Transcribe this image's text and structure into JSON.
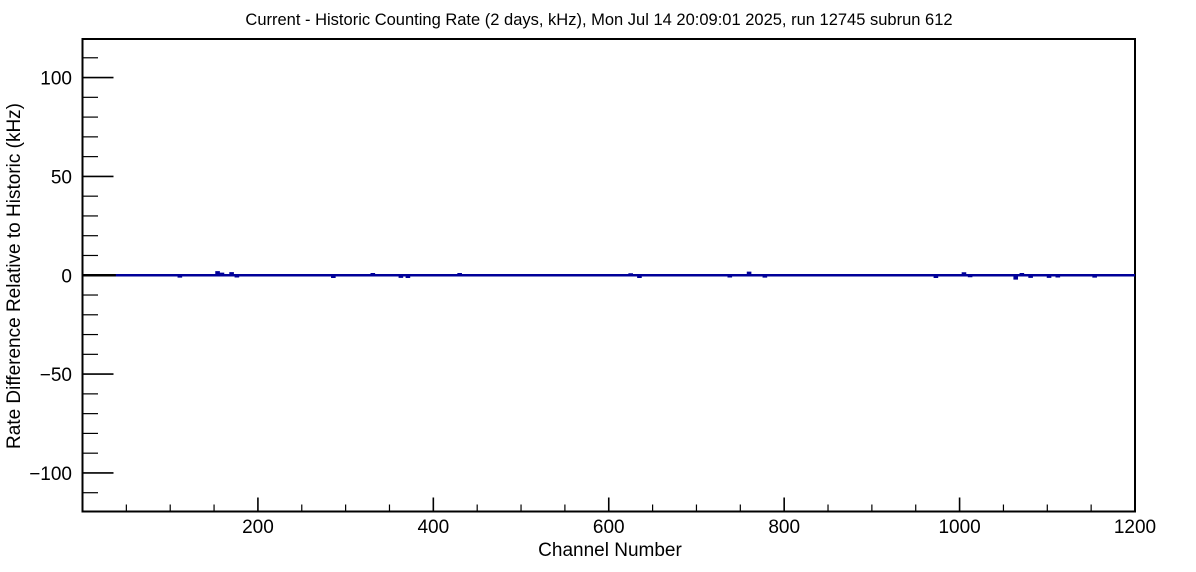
{
  "window": {
    "background": "#ffffff"
  },
  "chart_data": {
    "type": "line",
    "subtype": "root-histogram-rate-difference",
    "title": "Current - Historic Counting Rate (2 days, kHz), Mon Jul 14 20:09:01 2025, run 12745 subrun 612",
    "run": 12745,
    "subrun": 612,
    "timestamp_shown": "Mon Jul 14 20:09:01 2025",
    "xlabel": "Channel Number",
    "ylabel": "Rate Difference Relative to Historic (kHz)",
    "xlim": [
      0,
      1200
    ],
    "ylim": [
      -119.5,
      119.5
    ],
    "grid": false,
    "legend": null,
    "x_ticks": {
      "major_step": 200,
      "minor_step": 50,
      "labels": [
        200,
        400,
        600,
        800,
        1000,
        1200
      ]
    },
    "y_ticks": {
      "major_step": 50,
      "minor_step": 10,
      "labels": [
        -100,
        -50,
        0,
        50,
        100
      ]
    },
    "colors": {
      "line": "#000099",
      "zero_line": "#000000",
      "frame": "#000000",
      "text": "#000000",
      "background": "#ffffff"
    },
    "series": [
      {
        "name": "rate_difference_current_minus_historic",
        "baseline": 0,
        "black_zero_segment": [
          0,
          38
        ],
        "blue_start_channel": 38,
        "end_channel": 1200,
        "spikes": [
          [
            111,
            -0.6
          ],
          [
            154,
            1.5
          ],
          [
            159,
            0.7
          ],
          [
            170,
            1.0
          ],
          [
            176,
            -0.5
          ],
          [
            286,
            -0.8
          ],
          [
            331,
            0.5
          ],
          [
            363,
            -0.7
          ],
          [
            371,
            -0.8
          ],
          [
            430,
            0.5
          ],
          [
            625,
            0.4
          ],
          [
            635,
            -0.8
          ],
          [
            738,
            -0.5
          ],
          [
            760,
            1.2
          ],
          [
            778,
            -0.6
          ],
          [
            973,
            -0.8
          ],
          [
            1005,
            0.9
          ],
          [
            1012,
            -0.4
          ],
          [
            1064,
            -1.6
          ],
          [
            1071,
            0.5
          ],
          [
            1081,
            -0.7
          ],
          [
            1102,
            -0.7
          ],
          [
            1112,
            -0.5
          ],
          [
            1154,
            -0.6
          ]
        ]
      }
    ]
  }
}
